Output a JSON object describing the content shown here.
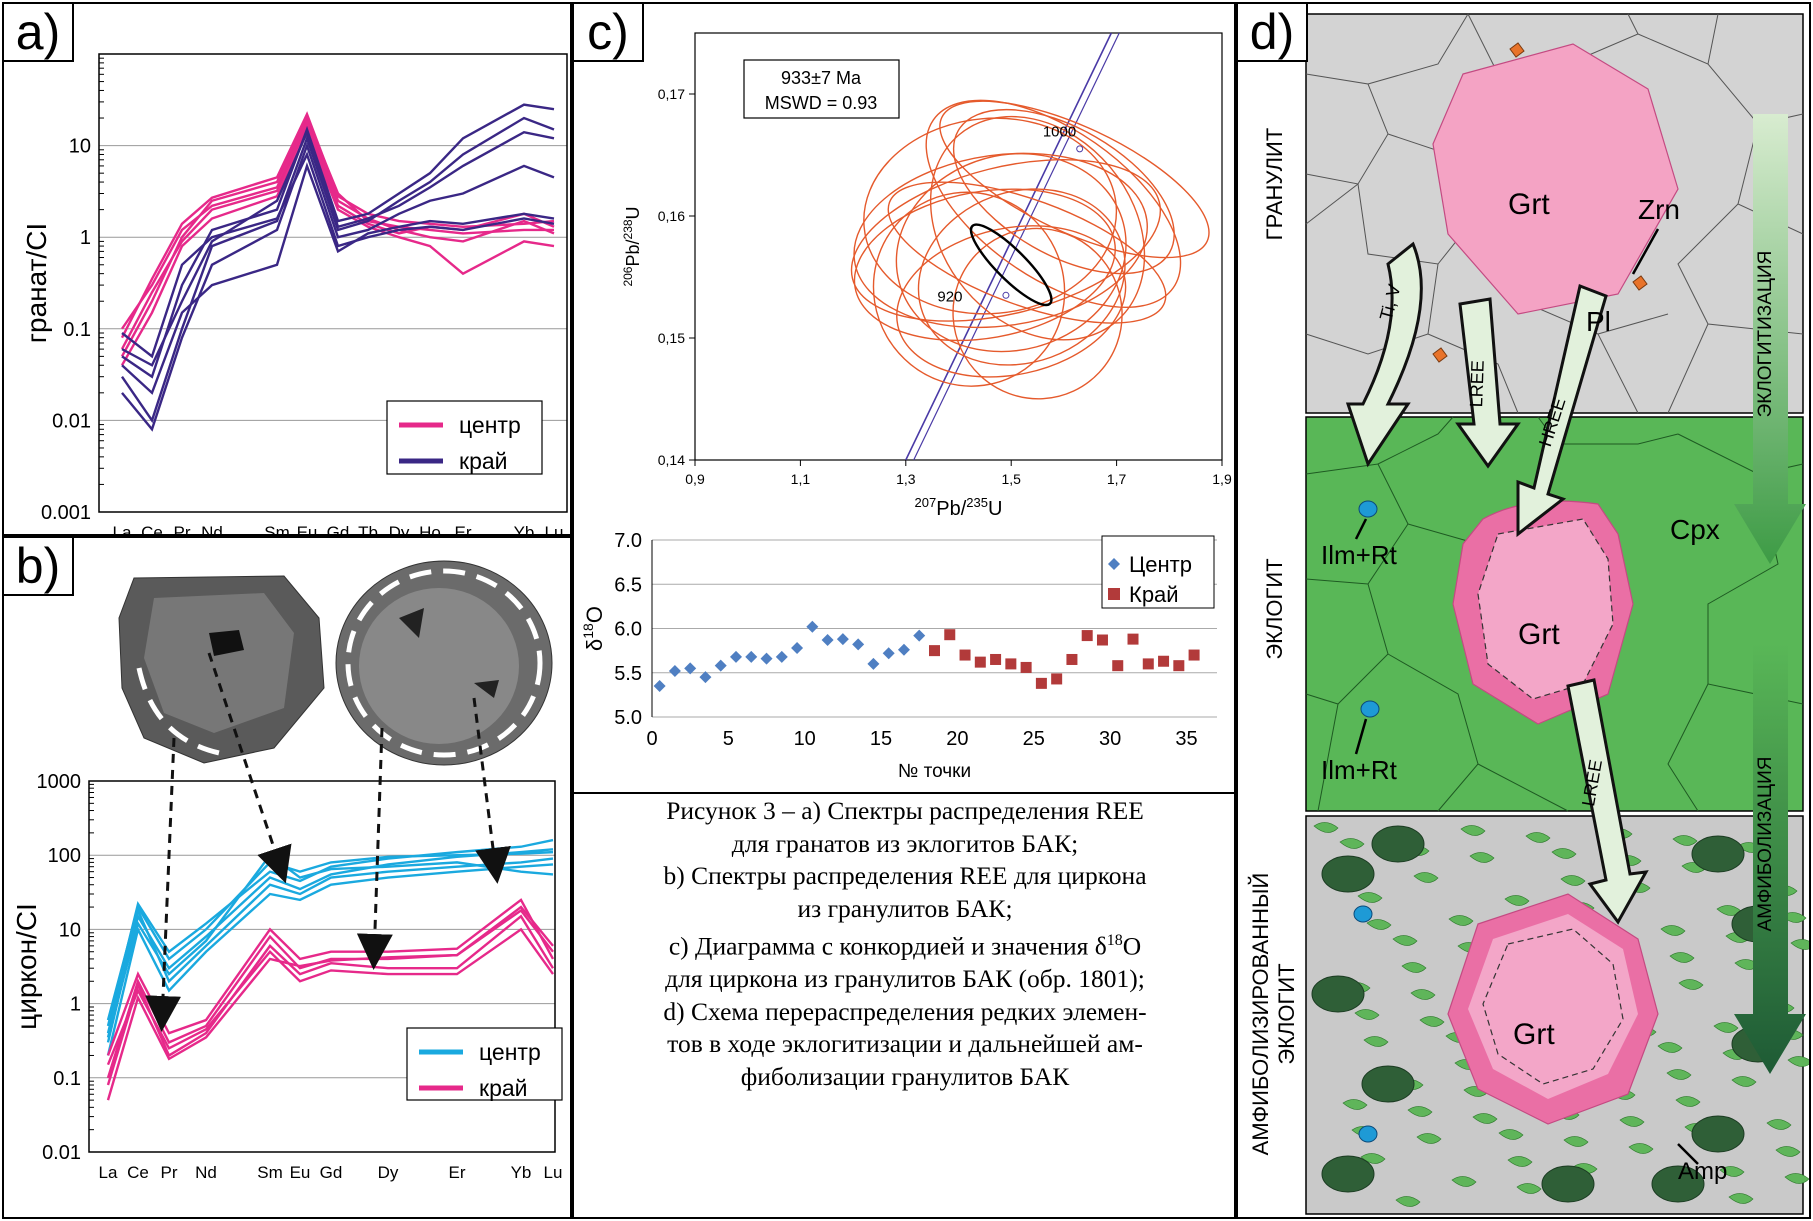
{
  "panels": {
    "a": {
      "label": "a)"
    },
    "b": {
      "label": "b)"
    },
    "c": {
      "label": "c)"
    },
    "d": {
      "label": "d)"
    }
  },
  "colors": {
    "center_pink": "#e6298a",
    "rim_purple": "#3a2785",
    "zircon_center": "#1aa9df",
    "conc_ellipse": "#e55a2c",
    "d18o_center": "#4f7fc2",
    "d18o_rim": "#b23a3a",
    "granulite_bg": "#d3d3d3",
    "eclogite_bg": "#59b757",
    "garnet": "#f4a3c4"
  },
  "chart_data": [
    {
      "type": "line",
      "panel": "a",
      "ylabel": "гранат/CI",
      "yscale": "log",
      "ylim": [
        0.001,
        100
      ],
      "yticks": [
        "0.001",
        "0.01",
        "0.1",
        "1",
        "10"
      ],
      "categories": [
        "La",
        "Ce",
        "Pr",
        "Nd",
        "Sm",
        "Eu",
        "Gd",
        "Tb",
        "Dy",
        "Ho",
        "Er",
        "Yb",
        "Lu"
      ],
      "legend": {
        "position": "bottom-right",
        "items": [
          "центр",
          "край"
        ]
      },
      "series": [
        {
          "name": "центр",
          "values": [
            0.05,
            0.2,
            1.0,
            2.5,
            4.0,
            20,
            3.0,
            1.5,
            1.3,
            1.2,
            1.1,
            1.2,
            1.2
          ]
        },
        {
          "name": "центр",
          "values": [
            0.1,
            0.3,
            1.2,
            2.2,
            3.5,
            18,
            2.5,
            1.6,
            1.2,
            1.0,
            0.9,
            1.5,
            1.1
          ]
        },
        {
          "name": "центр",
          "values": [
            0.06,
            0.25,
            0.9,
            2.0,
            3.2,
            16,
            2.2,
            1.4,
            1.1,
            1.3,
            1.2,
            1.8,
            1.3
          ]
        },
        {
          "name": "центр",
          "values": [
            0.04,
            0.15,
            0.8,
            1.6,
            2.8,
            14,
            2.0,
            1.3,
            1.0,
            0.8,
            0.4,
            0.9,
            0.8
          ]
        },
        {
          "name": "центр",
          "values": [
            0.08,
            0.35,
            1.4,
            2.7,
            4.5,
            22,
            2.8,
            1.8,
            1.5,
            1.4,
            1.3,
            1.4,
            1.5
          ]
        },
        {
          "name": "край",
          "values": [
            0.03,
            0.01,
            0.1,
            0.8,
            1.5,
            12,
            1.2,
            1.5,
            2.5,
            4,
            8,
            20,
            15
          ]
        },
        {
          "name": "край",
          "values": [
            0.05,
            0.03,
            0.3,
            1.2,
            2.0,
            15,
            1.5,
            1.8,
            3,
            5,
            12,
            28,
            25
          ]
        },
        {
          "name": "край",
          "values": [
            0.02,
            0.008,
            0.08,
            0.5,
            1.2,
            10,
            1.0,
            1.2,
            1.8,
            2.5,
            3,
            6,
            4.5
          ]
        },
        {
          "name": "край",
          "values": [
            0.09,
            0.05,
            0.5,
            1.0,
            1.6,
            8,
            0.8,
            1.0,
            1.2,
            1.3,
            1.2,
            1.6,
            1.4
          ]
        },
        {
          "name": "край",
          "values": [
            0.04,
            0.02,
            0.15,
            0.3,
            0.5,
            6,
            0.7,
            1.1,
            1.3,
            1.5,
            1.4,
            1.8,
            1.6
          ]
        },
        {
          "name": "край",
          "values": [
            0.06,
            0.04,
            0.2,
            0.9,
            2.5,
            14,
            1.3,
            1.6,
            2.2,
            3.5,
            6,
            14,
            12
          ]
        }
      ]
    },
    {
      "type": "line",
      "panel": "b",
      "ylabel": "циркон/CI",
      "yscale": "log",
      "ylim": [
        0.01,
        1000
      ],
      "yticks": [
        "0.01",
        "0.1",
        "1",
        "10",
        "100",
        "1000"
      ],
      "categories": [
        "La",
        "Ce",
        "Pr",
        "Nd",
        "Sm",
        "Eu",
        "Gd",
        "Dy",
        "Er",
        "Yb",
        "Lu"
      ],
      "legend": {
        "position": "bottom-right",
        "items": [
          "центр",
          "край"
        ]
      },
      "series": [
        {
          "name": "центр",
          "values": [
            0.5,
            22,
            5,
            12,
            60,
            45,
            70,
            90,
            110,
            130,
            160
          ]
        },
        {
          "name": "центр",
          "values": [
            0.3,
            15,
            3,
            8,
            50,
            35,
            55,
            75,
            95,
            110,
            120
          ]
        },
        {
          "name": "центр",
          "values": [
            0.4,
            18,
            2,
            6,
            40,
            30,
            50,
            60,
            70,
            80,
            90
          ]
        },
        {
          "name": "центр",
          "values": [
            0.2,
            10,
            1.5,
            5,
            30,
            25,
            40,
            50,
            60,
            70,
            75
          ]
        },
        {
          "name": "центр",
          "values": [
            0.6,
            20,
            4,
            10,
            80,
            60,
            80,
            95,
            100,
            105,
            110
          ]
        },
        {
          "name": "центр",
          "values": [
            0.35,
            12,
            2.5,
            7,
            100,
            50,
            65,
            70,
            80,
            60,
            55
          ]
        },
        {
          "name": "край",
          "values": [
            0.1,
            2,
            0.3,
            0.5,
            8,
            3,
            4,
            4,
            4.5,
            20,
            6
          ]
        },
        {
          "name": "край",
          "values": [
            0.2,
            2.5,
            0.4,
            0.6,
            10,
            4,
            5,
            5,
            5.5,
            25,
            4
          ]
        },
        {
          "name": "край",
          "values": [
            0.08,
            1.8,
            0.2,
            0.4,
            6,
            2.5,
            3.5,
            3,
            3,
            15,
            3
          ]
        },
        {
          "name": "край",
          "values": [
            0.15,
            1.5,
            0.25,
            0.45,
            5,
            2,
            2.8,
            2.5,
            2.5,
            10,
            2.5
          ]
        },
        {
          "name": "край",
          "values": [
            0.05,
            1.2,
            0.18,
            0.35,
            4,
            3.2,
            3.8,
            4.2,
            4.5,
            18,
            5
          ]
        }
      ]
    },
    {
      "type": "scatter",
      "panel": "c-concordia",
      "xlabel": "207Pb/235U",
      "ylabel": "206Pb/238U",
      "xlim": [
        0.9,
        1.9
      ],
      "ylim": [
        0.14,
        0.175
      ],
      "xticks": [
        "0,9",
        "1,1",
        "1,3",
        "1,5",
        "1,7",
        "1,9"
      ],
      "yticks": [
        "0,14",
        "0,15",
        "0,16",
        "0,17"
      ],
      "annotation": [
        "933±7 Ma",
        "MSWD = 0.93"
      ],
      "age_labels": [
        "1000",
        "920"
      ],
      "ellipses": [
        {
          "cx": 1.5,
          "cy": 0.157,
          "rx": 0.22,
          "ry": 0.008,
          "rot": -15
        },
        {
          "cx": 1.55,
          "cy": 0.159,
          "rx": 0.18,
          "ry": 0.01,
          "rot": -40
        },
        {
          "cx": 1.45,
          "cy": 0.156,
          "rx": 0.25,
          "ry": 0.006,
          "rot": -10
        },
        {
          "cx": 1.6,
          "cy": 0.162,
          "rx": 0.12,
          "ry": 0.01,
          "rot": -60
        },
        {
          "cx": 1.52,
          "cy": 0.155,
          "rx": 0.2,
          "ry": 0.007,
          "rot": -20
        },
        {
          "cx": 1.48,
          "cy": 0.158,
          "rx": 0.28,
          "ry": 0.007,
          "rot": -8
        },
        {
          "cx": 1.58,
          "cy": 0.161,
          "rx": 0.14,
          "ry": 0.012,
          "rot": -55
        },
        {
          "cx": 1.42,
          "cy": 0.154,
          "rx": 0.18,
          "ry": 0.008,
          "rot": -30
        },
        {
          "cx": 1.53,
          "cy": 0.157,
          "rx": 0.1,
          "ry": 0.012,
          "rot": -70
        },
        {
          "cx": 1.5,
          "cy": 0.153,
          "rx": 0.22,
          "ry": 0.006,
          "rot": -12
        },
        {
          "cx": 1.62,
          "cy": 0.163,
          "rx": 0.1,
          "ry": 0.012,
          "rot": -65
        },
        {
          "cx": 1.46,
          "cy": 0.16,
          "rx": 0.24,
          "ry": 0.008,
          "rot": -5
        },
        {
          "cx": 1.55,
          "cy": 0.152,
          "rx": 0.16,
          "ry": 0.007,
          "rot": -25
        },
        {
          "cx": 1.49,
          "cy": 0.158,
          "rx": 0.3,
          "ry": 0.006,
          "rot": -14
        }
      ],
      "concordia_ellipse": {
        "cx": 1.5,
        "cy": 0.156,
        "rx": 0.028,
        "ry": 0.0015,
        "rot": -45
      }
    },
    {
      "type": "scatter",
      "panel": "c-d18o",
      "xlabel": "№ точки",
      "ylabel": "δ18O",
      "xlim": [
        0,
        37
      ],
      "ylim": [
        5.0,
        7.0
      ],
      "xticks": [
        "0",
        "5",
        "10",
        "15",
        "20",
        "25",
        "30",
        "35"
      ],
      "yticks": [
        "5.0",
        "5.5",
        "6.0",
        "6.5",
        "7.0"
      ],
      "legend": {
        "position": "top-right",
        "items": [
          "Центр",
          "Край"
        ]
      },
      "series": [
        {
          "name": "Центр",
          "marker": "diamond",
          "x": [
            0.5,
            1.5,
            2.5,
            3.5,
            4.5,
            5.5,
            6.5,
            7.5,
            8.5,
            9.5,
            10.5,
            11.5,
            12.5,
            13.5,
            14.5,
            15.5,
            16.5,
            17.5
          ],
          "y": [
            5.35,
            5.52,
            5.55,
            5.45,
            5.58,
            5.68,
            5.68,
            5.66,
            5.68,
            5.78,
            6.02,
            5.87,
            5.88,
            5.82,
            5.6,
            5.72,
            5.76,
            5.92
          ]
        },
        {
          "name": "Край",
          "marker": "square",
          "x": [
            18.5,
            19.5,
            20.5,
            21.5,
            22.5,
            23.5,
            24.5,
            25.5,
            26.5,
            27.5,
            28.5,
            29.5,
            30.5,
            31.5,
            32.5,
            33.5,
            34.5,
            35.5
          ],
          "y": [
            5.75,
            5.93,
            5.7,
            5.62,
            5.65,
            5.6,
            5.56,
            5.38,
            5.43,
            5.65,
            5.92,
            5.87,
            5.58,
            5.88,
            5.6,
            5.63,
            5.58,
            5.7
          ]
        }
      ]
    }
  ],
  "diagram_d": {
    "stages": [
      "ГРАНУЛИТ",
      "ЭКЛОГИТ",
      "АМФИБОЛИЗИРОВАННЫЙ ЭКЛОГИТ"
    ],
    "process_arrows": [
      "ЭКЛОГИТИЗАЦИЯ",
      "АМФИБОЛИЗАЦИЯ"
    ],
    "minerals": {
      "grt": "Grt",
      "zrn": "Zrn",
      "pl": "Pl",
      "cpx": "Cpx",
      "ilmrt": "Ilm+Rt",
      "amp": "Amp"
    },
    "flux_arrows": [
      "Ti, V",
      "LREE",
      "HREE",
      "LREE"
    ]
  },
  "caption": {
    "line1": "Рисунок 3 – a) Спектры распределения REE",
    "line2": "для гранатов из эклогитов БАК;",
    "line3": "b) Спектры распределения REE для циркона",
    "line4": "из гранулитов БАК;",
    "line5a": "c) Диаграмма с конкордией и значения δ",
    "line5sup": "18",
    "line5b": "O",
    "line6": "для циркона из гранулитов БАК (обр. 1801);",
    "line7": "d) Схема перераспределения редких элемен-",
    "line8": "тов в ходе эклогитизации и дальнейшей ам-",
    "line9": "фиболизации гранулитов БАК"
  }
}
